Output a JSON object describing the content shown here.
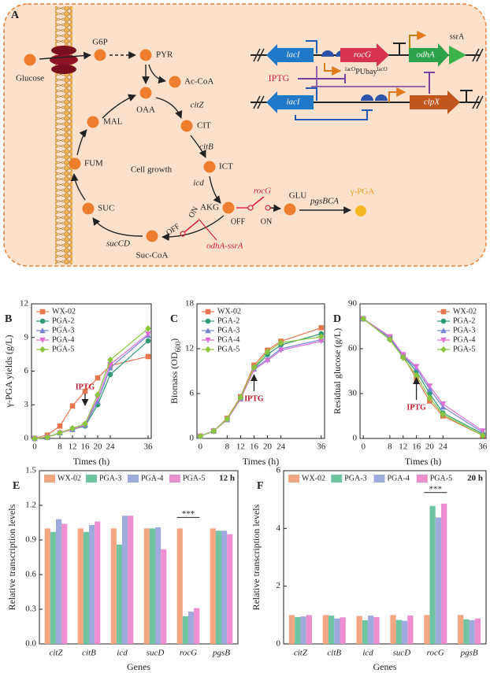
{
  "diagram": {
    "label": "A",
    "nodes": [
      "Glucose",
      "G6P",
      "PYR",
      "Ac-CoA",
      "OAA",
      "CIT",
      "ICT",
      "AKG",
      "GLU",
      "γ-PGA",
      "MAL",
      "FUM",
      "SUC",
      "Suc-CoA"
    ],
    "center_label": "Cell growth",
    "genes": [
      "citZ",
      "citB",
      "icd",
      "sucCD",
      "rocG",
      "pgsBCA",
      "odhA-ssrA"
    ],
    "switch_states": [
      "OFF",
      "ON",
      "OFF",
      "ON"
    ],
    "circuit": {
      "genes": [
        "lacI",
        "rocG",
        "odhA",
        "lacI",
        "clpX"
      ],
      "tag": "ssrA",
      "inducer": "IPTG",
      "promoter": [
        "lacO",
        "PUbay",
        "lacO"
      ]
    }
  },
  "chart_data": [
    {
      "label": "B",
      "type": "line",
      "x": [
        0,
        4,
        8,
        12,
        16,
        20,
        24,
        36
      ],
      "xlim": [
        -1,
        37
      ],
      "xticks": [
        0,
        8,
        12,
        16,
        20,
        24,
        36
      ],
      "ylim": [
        0,
        12
      ],
      "yticks": [
        0,
        3,
        6,
        9,
        12
      ],
      "x_label": "Times (h)",
      "y_label": "γ-PGA yields (g/L)",
      "legend": "upper left",
      "annotation": {
        "text": "IPTG",
        "x": 16
      },
      "series": [
        {
          "name": "WX-02",
          "color": "#e8774f",
          "marker": "square",
          "values": [
            0,
            0.3,
            1.1,
            2.9,
            4.2,
            5.4,
            6.5,
            7.3
          ]
        },
        {
          "name": "PGA-2",
          "color": "#2f9a78",
          "marker": "circle",
          "values": [
            0,
            0.1,
            0.5,
            0.8,
            1.1,
            3.0,
            5.7,
            8.7
          ]
        },
        {
          "name": "PGA-3",
          "color": "#7585d6",
          "marker": "triangle-up",
          "values": [
            0,
            0.1,
            0.5,
            0.8,
            1.2,
            3.3,
            6.3,
            9.2
          ]
        },
        {
          "name": "PGA-4",
          "color": "#db6fd6",
          "marker": "triangle-down",
          "values": [
            0,
            0.1,
            0.5,
            0.8,
            1.2,
            3.6,
            6.6,
            9.3
          ]
        },
        {
          "name": "PGA-5",
          "color": "#8cc63f",
          "marker": "diamond",
          "values": [
            0,
            0.1,
            0.5,
            0.9,
            1.3,
            3.9,
            7.0,
            9.8
          ]
        }
      ]
    },
    {
      "label": "C",
      "type": "line",
      "x": [
        0,
        4,
        8,
        12,
        16,
        20,
        24,
        36
      ],
      "xlim": [
        -1,
        37
      ],
      "xticks": [
        0,
        8,
        12,
        16,
        20,
        24,
        36
      ],
      "ylim": [
        0,
        18
      ],
      "yticks": [
        0,
        6,
        12,
        18
      ],
      "x_label": "Times (h)",
      "y_label": [
        "Biomass (OD",
        "600",
        ")"
      ],
      "legend": "upper left",
      "annotation": {
        "text": "IPTG",
        "x": 16
      },
      "series": [
        {
          "name": "WX-02",
          "color": "#e8774f",
          "marker": "square",
          "values": [
            0.3,
            1.0,
            2.7,
            5.6,
            9.8,
            11.8,
            13.0,
            14.8
          ]
        },
        {
          "name": "PGA-2",
          "color": "#2f9a78",
          "marker": "circle",
          "values": [
            0.3,
            1.0,
            2.6,
            5.4,
            9.4,
            11.2,
            12.5,
            14.0
          ]
        },
        {
          "name": "PGA-3",
          "color": "#7585d6",
          "marker": "triangle-up",
          "values": [
            0.3,
            1.0,
            2.5,
            5.3,
            9.3,
            10.6,
            12.0,
            13.2
          ]
        },
        {
          "name": "PGA-4",
          "color": "#db6fd6",
          "marker": "triangle-down",
          "values": [
            0.3,
            1.0,
            2.5,
            5.3,
            9.2,
            10.4,
            11.8,
            13.0
          ]
        },
        {
          "name": "PGA-5",
          "color": "#8cc63f",
          "marker": "diamond",
          "values": [
            0.3,
            1.0,
            2.6,
            5.5,
            9.5,
            11.6,
            12.8,
            13.6
          ]
        }
      ]
    },
    {
      "label": "D",
      "type": "line",
      "x": [
        0,
        8,
        12,
        16,
        20,
        24,
        36
      ],
      "xlim": [
        -1,
        37
      ],
      "xticks": [
        0,
        8,
        12,
        16,
        20,
        24,
        36
      ],
      "ylim": [
        0,
        90
      ],
      "yticks": [
        0,
        30,
        60,
        90
      ],
      "x_label": "Times (h)",
      "y_label": "Residual glucose (g/L)",
      "legend": "upper right",
      "annotation": {
        "text": "IPTG",
        "x": 16
      },
      "series": [
        {
          "name": "WX-02",
          "color": "#e8774f",
          "marker": "square",
          "values": [
            80,
            67,
            55,
            40,
            25,
            15,
            2
          ]
        },
        {
          "name": "PGA-2",
          "color": "#2f9a78",
          "marker": "circle",
          "values": [
            80,
            68,
            55,
            45,
            30,
            17,
            3
          ]
        },
        {
          "name": "PGA-3",
          "color": "#7585d6",
          "marker": "triangle-up",
          "values": [
            80,
            67,
            55,
            47,
            33,
            21,
            4
          ]
        },
        {
          "name": "PGA-4",
          "color": "#db6fd6",
          "marker": "triangle-down",
          "values": [
            80,
            68,
            56,
            48,
            35,
            23,
            5
          ]
        },
        {
          "name": "PGA-5",
          "color": "#8cc63f",
          "marker": "diamond",
          "values": [
            80,
            66,
            54,
            42,
            27,
            16,
            2
          ]
        }
      ]
    },
    {
      "label": "E",
      "type": "bar",
      "categories": [
        "citZ",
        "citB",
        "icd",
        "sucD",
        "rocG",
        "pgsB"
      ],
      "ylim": [
        0,
        1.5
      ],
      "yticks": [
        {
          "value": 0,
          "label": "0.0"
        },
        0.3,
        0.6,
        0.9,
        1.2,
        1.5
      ],
      "x_label": "Genes",
      "y_label": "Relative transcription levels",
      "time_label": "12 h",
      "significance": {
        "text": "***",
        "category": "rocG"
      },
      "legend": "top",
      "series": [
        {
          "name": "WX-02",
          "color": "#f4a582",
          "values": [
            1.0,
            1.0,
            1.0,
            1.0,
            1.0,
            1.0
          ]
        },
        {
          "name": "PGA-3",
          "color": "#6fc4a2",
          "values": [
            0.97,
            0.97,
            0.86,
            1.0,
            0.24,
            0.98
          ]
        },
        {
          "name": "PGA-4",
          "color": "#9ea9dc",
          "values": [
            1.08,
            1.03,
            1.11,
            1.01,
            0.28,
            0.98
          ]
        },
        {
          "name": "PGA-5",
          "color": "#ec8ed0",
          "values": [
            1.04,
            1.06,
            1.11,
            0.82,
            0.31,
            0.95
          ]
        }
      ]
    },
    {
      "label": "F",
      "type": "bar",
      "categories": [
        "citZ",
        "citB",
        "icd",
        "sucD",
        "rocG",
        "pgsB"
      ],
      "ylim": [
        0,
        6
      ],
      "yticks": [
        0,
        2,
        4,
        6
      ],
      "x_label": "Genes",
      "y_label": "Relative transcription levels",
      "time_label": "20 h",
      "significance": {
        "text": "***",
        "category": "rocG"
      },
      "legend": "top",
      "series": [
        {
          "name": "WX-02",
          "color": "#f4a582",
          "values": [
            1.0,
            1.0,
            0.97,
            1.0,
            1.0,
            1.0
          ]
        },
        {
          "name": "PGA-3",
          "color": "#6fc4a2",
          "values": [
            0.93,
            0.98,
            0.82,
            0.83,
            4.78,
            0.85
          ]
        },
        {
          "name": "PGA-4",
          "color": "#9ea9dc",
          "values": [
            0.95,
            0.88,
            0.98,
            0.8,
            4.38,
            0.82
          ]
        },
        {
          "name": "PGA-5",
          "color": "#ec8ed0",
          "values": [
            1.0,
            0.92,
            0.93,
            0.98,
            4.86,
            0.88
          ]
        }
      ]
    }
  ]
}
